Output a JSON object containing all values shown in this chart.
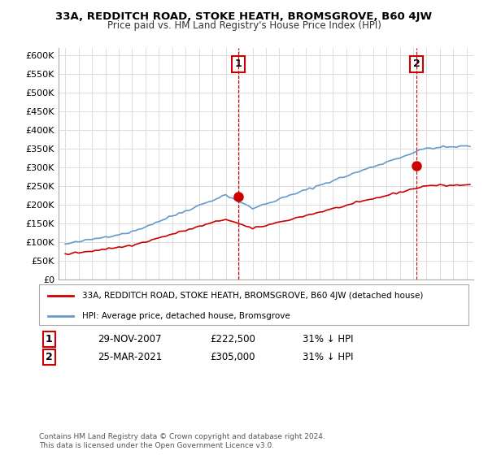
{
  "title": "33A, REDDITCH ROAD, STOKE HEATH, BROMSGROVE, B60 4JW",
  "subtitle": "Price paid vs. HM Land Registry's House Price Index (HPI)",
  "legend_line1": "33A, REDDITCH ROAD, STOKE HEATH, BROMSGROVE, B60 4JW (detached house)",
  "legend_line2": "HPI: Average price, detached house, Bromsgrove",
  "sale1_date": "29-NOV-2007",
  "sale1_price": "£222,500",
  "sale1_pct": "31% ↓ HPI",
  "sale2_date": "25-MAR-2021",
  "sale2_price": "£305,000",
  "sale2_pct": "31% ↓ HPI",
  "footer": "Contains HM Land Registry data © Crown copyright and database right 2024.\nThis data is licensed under the Open Government Licence v3.0.",
  "sale1_year": 2007.92,
  "sale2_year": 2021.24,
  "sale1_value": 222500,
  "sale2_value": 305000,
  "hpi_color": "#6699cc",
  "price_color": "#cc0000",
  "vline_color": "#cc0000",
  "background_color": "#ffffff",
  "plot_bg_color": "#ffffff",
  "grid_color": "#dddddd",
  "ylim": [
    0,
    620000
  ],
  "xlim": [
    1994.5,
    2025.5
  ],
  "yticks": [
    0,
    50000,
    100000,
    150000,
    200000,
    250000,
    300000,
    350000,
    400000,
    450000,
    500000,
    550000,
    600000
  ],
  "ytick_labels": [
    "£0",
    "£50K",
    "£100K",
    "£150K",
    "£200K",
    "£250K",
    "£300K",
    "£350K",
    "£400K",
    "£450K",
    "£500K",
    "£550K",
    "£600K"
  ]
}
